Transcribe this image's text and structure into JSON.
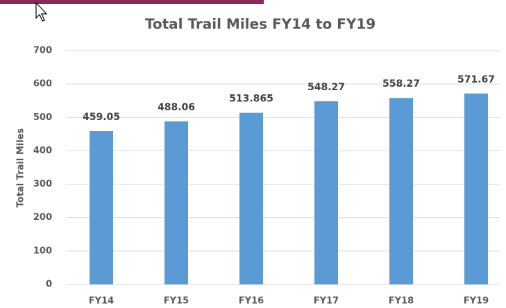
{
  "chart_data": {
    "type": "bar",
    "title": "Total Trail Miles FY14 to FY19",
    "y_label": "Total Trail Miles",
    "categories": [
      "FY14",
      "FY15",
      "FY16",
      "FY17",
      "FY18",
      "FY19"
    ],
    "values": [
      459.05,
      488.06,
      513.865,
      548.27,
      558.27,
      571.67
    ],
    "color": "#5b9bd5",
    "ylim": [
      0,
      700
    ],
    "yticks": [
      0,
      100,
      200,
      300,
      400,
      500,
      600,
      700
    ],
    "grid": true
  }
}
